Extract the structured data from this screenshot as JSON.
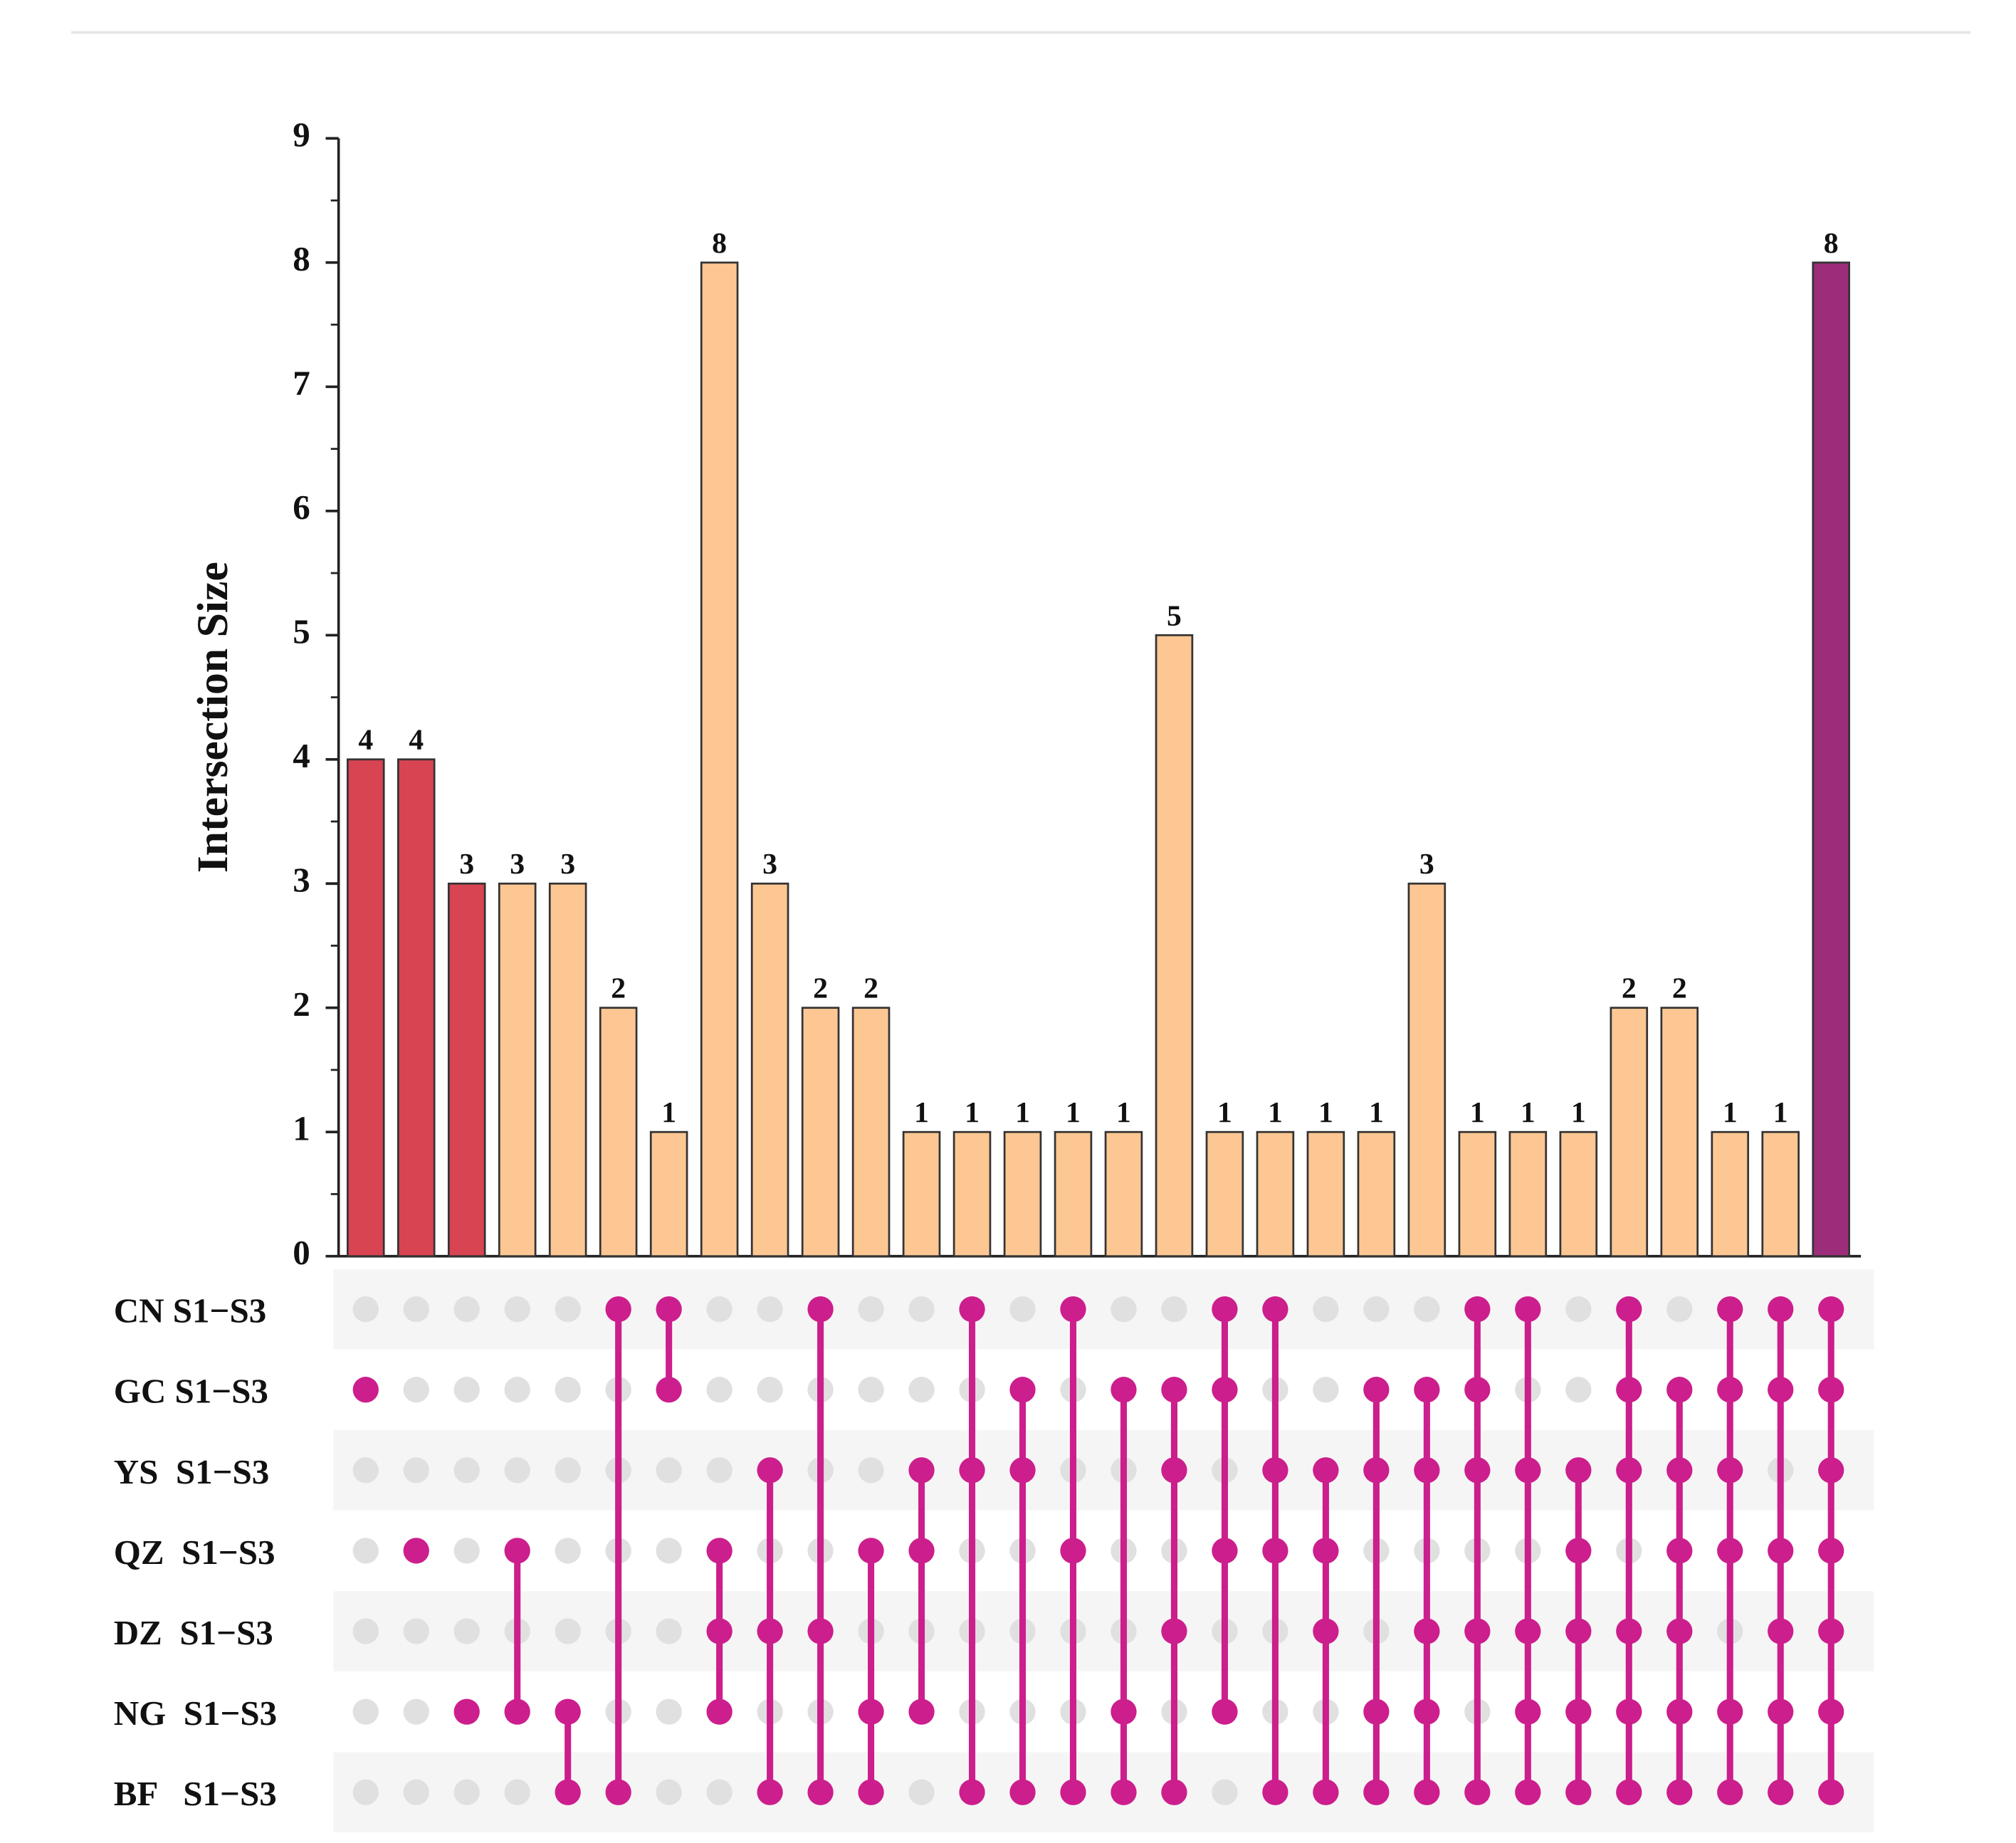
{
  "chart_data": {
    "type": "upset",
    "ylabel": "Intersection Size",
    "ylim": [
      0,
      9
    ],
    "yticks": [
      0,
      1,
      2,
      3,
      4,
      5,
      6,
      7,
      8,
      9
    ],
    "minor_yticks": [
      0.5,
      1.5,
      2.5,
      3.5,
      4.5,
      5.5,
      6.5,
      7.5,
      8.5
    ],
    "sets": [
      "CN S1−S3",
      "GC S1−S3",
      "YS  S1−S3",
      "QZ  S1−S3",
      "DZ  S1−S3",
      "NG  S1−S3",
      "BF   S1−S3"
    ],
    "values": [
      4,
      4,
      3,
      3,
      3,
      2,
      1,
      8,
      3,
      2,
      2,
      1,
      1,
      1,
      1,
      1,
      5,
      1,
      1,
      1,
      1,
      3,
      1,
      1,
      1,
      2,
      2,
      1,
      1,
      8
    ],
    "colors": [
      "#d94452",
      "#d94452",
      "#d94452",
      "#fdc794",
      "#fdc794",
      "#fdc794",
      "#fdc794",
      "#fdc794",
      "#fdc794",
      "#fdc794",
      "#fdc794",
      "#fdc794",
      "#fdc794",
      "#fdc794",
      "#fdc794",
      "#fdc794",
      "#fdc794",
      "#fdc794",
      "#fdc794",
      "#fdc794",
      "#fdc794",
      "#fdc794",
      "#fdc794",
      "#fdc794",
      "#fdc794",
      "#fdc794",
      "#fdc794",
      "#fdc794",
      "#fdc794",
      "#9c2d7b"
    ],
    "members": [
      [
        1
      ],
      [
        3
      ],
      [
        5
      ],
      [
        3,
        5
      ],
      [
        5,
        6
      ],
      [
        0,
        6
      ],
      [
        0,
        1
      ],
      [
        3,
        4,
        5
      ],
      [
        2,
        4,
        6
      ],
      [
        0,
        4,
        6
      ],
      [
        3,
        5,
        6
      ],
      [
        2,
        3,
        5
      ],
      [
        0,
        2,
        6
      ],
      [
        1,
        2,
        6
      ],
      [
        0,
        3,
        6
      ],
      [
        1,
        5,
        6
      ],
      [
        1,
        2,
        4,
        6
      ],
      [
        0,
        1,
        3,
        5
      ],
      [
        0,
        2,
        3,
        6
      ],
      [
        2,
        3,
        4,
        6
      ],
      [
        1,
        2,
        5,
        6
      ],
      [
        1,
        2,
        4,
        5,
        6
      ],
      [
        0,
        1,
        2,
        4,
        6
      ],
      [
        0,
        2,
        4,
        5,
        6
      ],
      [
        2,
        3,
        4,
        5,
        6
      ],
      [
        0,
        1,
        2,
        4,
        5,
        6
      ],
      [
        1,
        2,
        3,
        4,
        5,
        6
      ],
      [
        0,
        1,
        2,
        3,
        5,
        6
      ],
      [
        0,
        1,
        3,
        4,
        5,
        6
      ],
      [
        0,
        1,
        2,
        3,
        4,
        5,
        6
      ]
    ],
    "dot_color": "#cc1e8c",
    "empty_dot_color": "#e0e0e0"
  }
}
